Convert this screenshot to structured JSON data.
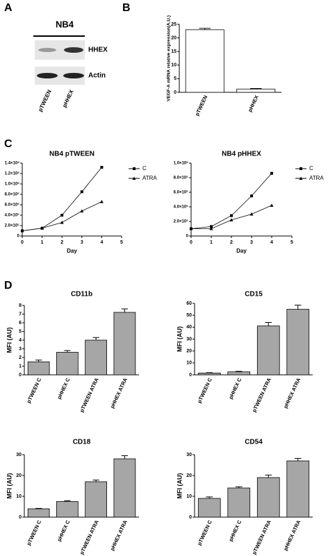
{
  "panel_labels": [
    "A",
    "B",
    "C",
    "D"
  ],
  "blot": {
    "title": "NB4",
    "bands": [
      "HHEX",
      "Actin"
    ],
    "lanes": [
      "pTWEEN",
      "pHHEX"
    ]
  },
  "chart_data": [
    {
      "type": "bar",
      "ylabel": "VEGF-A mRNA relative expression(A.U.)",
      "categories": [
        "pTWEEN",
        "pHHEX"
      ],
      "values": [
        23,
        1.2
      ],
      "errors": [
        0.5,
        0.2
      ],
      "color": "#ffffff",
      "ylim": [
        0,
        25
      ],
      "yticks": [
        0,
        5,
        10,
        15,
        20,
        25
      ]
    },
    {
      "type": "line",
      "title": "NB4 pTWEEN",
      "xlabel": "Day",
      "x": [
        0,
        1,
        2,
        3,
        4
      ],
      "series": [
        {
          "name": "C",
          "color": "#000000",
          "marker": "square",
          "values": [
            100000,
            150000,
            400000,
            850000,
            1320000
          ]
        },
        {
          "name": "ATRA",
          "color": "#000000",
          "marker": "triangle",
          "values": [
            100000,
            150000,
            260000,
            480000,
            660000
          ]
        }
      ],
      "xlim": [
        0,
        5
      ],
      "xticks": [
        0,
        1,
        2,
        3,
        4,
        5
      ],
      "ylim": [
        0,
        1400000
      ],
      "yticks": [
        0,
        {
          "value": 200000,
          "label": "2.0×10⁵"
        },
        {
          "value": 400000,
          "label": "4.0×10⁵"
        },
        {
          "value": 600000,
          "label": "6.0×10⁵"
        },
        {
          "value": 800000,
          "label": "8.0×10⁵"
        },
        {
          "value": 1000000,
          "label": "1.0×10⁶"
        },
        {
          "value": 1200000,
          "label": "1.2×10⁶"
        },
        {
          "value": 1400000,
          "label": "1.4×10⁶"
        }
      ]
    },
    {
      "type": "line",
      "title": "NB4 pHHEX",
      "xlabel": "Day",
      "x": [
        0,
        1,
        2,
        3,
        4
      ],
      "series": [
        {
          "name": "C",
          "color": "#000000",
          "marker": "square",
          "values": [
            100000,
            130000,
            280000,
            550000,
            860000
          ]
        },
        {
          "name": "ATRA",
          "color": "#000000",
          "marker": "triangle",
          "values": [
            100000,
            100000,
            220000,
            300000,
            420000
          ]
        }
      ],
      "xlim": [
        0,
        5
      ],
      "xticks": [
        0,
        1,
        2,
        3,
        4,
        5
      ],
      "ylim": [
        0,
        1000000
      ],
      "yticks": [
        0,
        {
          "value": 200000,
          "label": "2.0×10⁵"
        },
        {
          "value": 400000,
          "label": "4.0×10⁵"
        },
        {
          "value": 600000,
          "label": "6.0×10⁵"
        },
        {
          "value": 800000,
          "label": "8.0×10⁵"
        },
        {
          "value": 1000000,
          "label": "1.0×10⁶"
        }
      ]
    },
    {
      "type": "bar",
      "title": "CD11b",
      "ylabel": "MFI (AU)",
      "categories": [
        "pTWEEN C",
        "pHHEX C",
        "pTWEEN ATRA",
        "pHHEX ATRA"
      ],
      "values": [
        1.5,
        2.6,
        4.0,
        7.2
      ],
      "errors": [
        0.2,
        0.2,
        0.3,
        0.4
      ],
      "color": "#a6a6a6",
      "ylim": [
        0,
        8
      ],
      "yticks": [
        0,
        1,
        2,
        3,
        4,
        5,
        6,
        7,
        8
      ]
    },
    {
      "type": "bar",
      "title": "CD15",
      "ylabel": "MFI (AU)",
      "categories": [
        "pTWEEN C",
        "pHHEX C",
        "pTWEEN ATRA",
        "pHHEX ATRA"
      ],
      "values": [
        1.5,
        2.5,
        41,
        55
      ],
      "errors": [
        0.3,
        0.4,
        3,
        3.5
      ],
      "color": "#a6a6a6",
      "ylim": [
        0,
        60
      ],
      "yticks": [
        0,
        10,
        20,
        30,
        40,
        50,
        60
      ]
    },
    {
      "type": "bar",
      "title": "CD18",
      "ylabel": "MFI (AU)",
      "categories": [
        "pTWEEN C",
        "pHHEX C",
        "pTWEEN ATRA",
        "pHHEX ATRA"
      ],
      "values": [
        4,
        7.5,
        17,
        28
      ],
      "errors": [
        0.2,
        0.4,
        0.8,
        1.5
      ],
      "color": "#a6a6a6",
      "ylim": [
        0,
        30
      ],
      "yticks": [
        0,
        10,
        20,
        30
      ]
    },
    {
      "type": "bar",
      "title": "CD54",
      "ylabel": "MFI (AU)",
      "categories": [
        "pTWEEN C",
        "pHHEX C",
        "pTWEEN ATRA",
        "pHHEX ATRA"
      ],
      "values": [
        9,
        14,
        19,
        27
      ],
      "errors": [
        0.7,
        0.6,
        1.2,
        1.2
      ],
      "color": "#a6a6a6",
      "ylim": [
        0,
        30
      ],
      "yticks": [
        0,
        10,
        20,
        30
      ]
    }
  ]
}
